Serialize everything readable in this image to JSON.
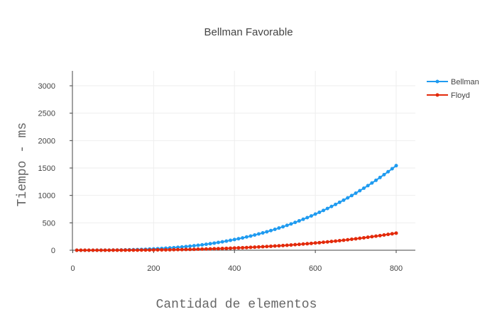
{
  "chart_data": {
    "type": "line",
    "title": "Bellman Favorable",
    "xlabel": "Cantidad de elementos",
    "ylabel": "Tiempo - ms",
    "xlim": [
      -10,
      850
    ],
    "ylim": [
      -40,
      3300
    ],
    "x_ticks": [
      0,
      200,
      400,
      600,
      800
    ],
    "x_tick_labels": [
      "0",
      "200",
      "400",
      "600",
      "800"
    ],
    "y_ticks": [
      0,
      500,
      1000,
      1500,
      2000,
      2500,
      3000
    ],
    "y_tick_labels": [
      "0",
      "500",
      "1000",
      "1500",
      "2000",
      "2500",
      "3000"
    ],
    "grid": true,
    "legend_position": "top-right",
    "x": [
      10,
      20,
      30,
      40,
      50,
      60,
      70,
      80,
      90,
      100,
      110,
      120,
      130,
      140,
      150,
      160,
      170,
      180,
      190,
      200,
      210,
      220,
      230,
      240,
      250,
      260,
      270,
      280,
      290,
      300,
      310,
      320,
      330,
      340,
      350,
      360,
      370,
      380,
      390,
      400,
      410,
      420,
      430,
      440,
      450,
      460,
      470,
      480,
      490,
      500,
      510,
      520,
      530,
      540,
      550,
      560,
      570,
      580,
      590,
      600,
      610,
      620,
      630,
      640,
      650,
      660,
      670,
      680,
      690,
      700,
      710,
      720,
      730,
      740,
      750,
      760,
      770,
      780,
      790,
      800
    ],
    "series": [
      {
        "name": "Bellman",
        "color": "#1f9bf0",
        "values": [
          0,
          0,
          0,
          0,
          0,
          1,
          1,
          2,
          2,
          3,
          4,
          5,
          6,
          8,
          10,
          12,
          14,
          17,
          21,
          24,
          28,
          32,
          37,
          42,
          47,
          53,
          60,
          67,
          74,
          82,
          90,
          99,
          109,
          119,
          130,
          142,
          154,
          167,
          181,
          195,
          210,
          225,
          242,
          259,
          278,
          297,
          316,
          337,
          359,
          381,
          405,
          429,
          454,
          480,
          508,
          536,
          565,
          595,
          626,
          659,
          692,
          726,
          762,
          798,
          836,
          875,
          914,
          955,
          998,
          1041,
          1086,
          1131,
          1178,
          1227,
          1276,
          1327,
          1379,
          1432,
          1487,
          1543
        ]
      },
      {
        "name": "Floyd",
        "color": "#e32a0b",
        "values": [
          0,
          0,
          0,
          0,
          0,
          0,
          0,
          0,
          0,
          1,
          1,
          1,
          1,
          2,
          2,
          2,
          3,
          3,
          4,
          5,
          6,
          6,
          7,
          8,
          10,
          11,
          12,
          14,
          15,
          17,
          19,
          21,
          23,
          25,
          27,
          29,
          32,
          34,
          37,
          40,
          43,
          46,
          49,
          53,
          56,
          60,
          64,
          68,
          72,
          77,
          81,
          86,
          91,
          96,
          102,
          107,
          113,
          119,
          125,
          132,
          138,
          145,
          152,
          160,
          167,
          175,
          183,
          191,
          200,
          209,
          218,
          227,
          237,
          247,
          257,
          267,
          278,
          289,
          300,
          312
        ]
      }
    ]
  }
}
